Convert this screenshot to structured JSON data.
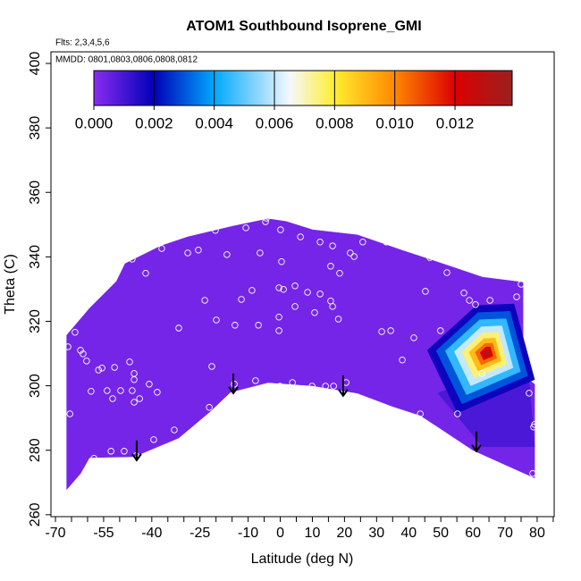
{
  "chart_data": {
    "type": "curtain",
    "title": "ATOM1 Southbound Isoprene_GMI",
    "subtitle": "Flts: 2,3,4,5,6",
    "annotation": "MMDD: 0801,0803,0806,0808,0812",
    "x_label": "Latitude (deg N)",
    "y_label": "Theta (C)",
    "xlim": [
      -71.4,
      85.3
    ],
    "ylim": [
      259.4,
      403.6
    ],
    "xticks": [
      -70,
      -55,
      -40,
      -25,
      -10,
      0,
      10,
      20,
      30,
      40,
      50,
      60,
      70,
      80
    ],
    "xminor_ticks": [
      -65,
      -60,
      -50,
      -45,
      -35,
      -30,
      -20,
      -15,
      -5,
      5,
      15,
      25,
      35,
      45,
      55,
      65,
      75,
      85
    ],
    "yticks": [
      260,
      280,
      300,
      320,
      340,
      360,
      380,
      400
    ],
    "colorbar": {
      "lim": [
        0,
        0.0139
      ],
      "ticks": [
        {
          "value": 0,
          "label": "0.000"
        },
        {
          "value": 0.002,
          "label": "0.002"
        },
        {
          "value": 0.004,
          "label": "0.004"
        },
        {
          "value": 0.006,
          "label": "0.006"
        },
        {
          "value": 0.008,
          "label": "0.008"
        },
        {
          "value": 0.01,
          "label": "0.010"
        },
        {
          "value": 0.012,
          "label": "0.012"
        }
      ],
      "colorscale": [
        [
          0,
          "#8a2cf0"
        ],
        [
          0.002,
          "#0000b8"
        ],
        [
          0.004,
          "#00a8ff"
        ],
        [
          0.0065,
          "#f4f8ff"
        ],
        [
          0.008,
          "#ffee30"
        ],
        [
          0.01,
          "#ff8800"
        ],
        [
          0.012,
          "#dd0000"
        ],
        [
          0.0139,
          "#9a2020"
        ]
      ]
    },
    "levels": [
      {
        "value": 0.0003,
        "polygon": [
          [
            -66.5,
            267.8
          ],
          [
            -66.5,
            315.7
          ],
          [
            -59.4,
            324
          ],
          [
            -51,
            332.4
          ],
          [
            -48.3,
            337.9
          ],
          [
            -37.2,
            343.4
          ],
          [
            -28.8,
            346.2
          ],
          [
            -14.9,
            349.5
          ],
          [
            -3.8,
            351.8
          ],
          [
            1.8,
            351
          ],
          [
            10.1,
            348.4
          ],
          [
            24,
            346.8
          ],
          [
            38,
            342
          ],
          [
            46.3,
            339.3
          ],
          [
            54.7,
            336.5
          ],
          [
            63,
            333.7
          ],
          [
            75.6,
            332.1
          ],
          [
            75.6,
            303.2
          ],
          [
            79.2,
            300.5
          ],
          [
            79.2,
            271.4
          ],
          [
            70,
            275.5
          ],
          [
            60,
            280
          ],
          [
            50,
            286.6
          ],
          [
            43.6,
            290.8
          ],
          [
            35.2,
            293.5
          ],
          [
            24,
            297.7
          ],
          [
            10.1,
            300
          ],
          [
            -3.8,
            301
          ],
          [
            -15.5,
            298
          ],
          [
            -21.8,
            292
          ],
          [
            -31.6,
            283.8
          ],
          [
            -45.5,
            278
          ],
          [
            -59.4,
            277.7
          ],
          [
            -62.2,
            272.8
          ]
        ]
      },
      {
        "value": 0.0009,
        "polygon": [
          [
            49.1,
            297.7
          ],
          [
            76.9,
            308.8
          ],
          [
            79.2,
            281.1
          ],
          [
            63.0,
            281.1
          ]
        ]
      },
      {
        "value": 0.0018,
        "polygon": [
          [
            45.8,
            311.0
          ],
          [
            61.1,
            324.9
          ],
          [
            72.8,
            325.4
          ],
          [
            79.2,
            301.9
          ],
          [
            55.2,
            291.6
          ]
        ]
      },
      {
        "value": 0.003,
        "polygon": [
          [
            48.6,
            310.9
          ],
          [
            61.6,
            322.7
          ],
          [
            71.5,
            323.1
          ],
          [
            77.0,
            303.1
          ],
          [
            56.6,
            294.4
          ]
        ]
      },
      {
        "value": 0.0045,
        "polygon": [
          [
            51.4,
            310.8
          ],
          [
            62.1,
            320.5
          ],
          [
            70.3,
            320.8
          ],
          [
            74.8,
            304.4
          ],
          [
            58.0,
            297.2
          ]
        ]
      },
      {
        "value": 0.006,
        "polygon": [
          [
            54.2,
            310.6
          ],
          [
            62.6,
            318.3
          ],
          [
            69.0,
            318.6
          ],
          [
            72.5,
            305.6
          ],
          [
            59.3,
            300.0
          ]
        ]
      },
      {
        "value": 0.0075,
        "polygon": [
          [
            56.6,
            310.5
          ],
          [
            63.0,
            316.4
          ],
          [
            67.9,
            316.6
          ],
          [
            70.6,
            306.7
          ],
          [
            60.5,
            302.4
          ]
        ]
      },
      {
        "value": 0.009,
        "polygon": [
          [
            58.8,
            310.4
          ],
          [
            63.4,
            314.6
          ],
          [
            66.9,
            314.8
          ],
          [
            68.8,
            307.7
          ],
          [
            61.6,
            304.6
          ]
        ]
      },
      {
        "value": 0.0105,
        "polygon": [
          [
            60.7,
            310.4
          ],
          [
            63.7,
            313.1
          ],
          [
            66.1,
            313.2
          ],
          [
            67.4,
            308.5
          ],
          [
            62.6,
            306.5
          ]
        ]
      },
      {
        "value": 0.012,
        "polygon": [
          [
            62.2,
            310.3
          ],
          [
            64.0,
            312.0
          ],
          [
            65.4,
            312.0
          ],
          [
            66.2,
            309.2
          ],
          [
            63.3,
            308.0
          ]
        ]
      },
      {
        "value": 0.0135,
        "polygon": [
          [
            63.5,
            310.2
          ],
          [
            64.2,
            310.9
          ],
          [
            64.8,
            310.9
          ],
          [
            65.1,
            309.8
          ],
          [
            63.9,
            309.3
          ]
        ]
      }
    ],
    "points": {
      "x": [
        -66.1,
        -63.9,
        -62.2,
        -61.4,
        -60.3,
        -56.6,
        -55.5,
        -51.6,
        -46.9,
        -45.5,
        -45.5,
        -58.9,
        -53.9,
        -52.2,
        -49.7,
        -46.1,
        -43.8,
        -45.5,
        -40.8,
        -38.3,
        -65.5,
        -58.0,
        -52.7,
        -48.6,
        -44.9,
        -39.4,
        -33.0,
        -46.1,
        -41.9,
        -36.9,
        -28.8,
        -25.5,
        -20.2,
        -16.6,
        -10.7,
        -4.6,
        -4.3,
        0.1,
        -6.3,
        6.3,
        12.4,
        16.3,
        21.8,
        25.7,
        33.0,
        40.2,
        46.6,
        51.9,
        23.0,
        15.7,
        18.5,
        0.4,
        4.6,
        8.5,
        12.4,
        15.7,
        -0.4,
        1.0,
        -8.8,
        -12.1,
        -23.5,
        -19.9,
        -14.1,
        -6.8,
        -0.4,
        -0.4,
        4.6,
        10.7,
        16.3,
        18.1,
        31.6,
        34.4,
        41.6,
        45.2,
        49.9,
        57.2,
        58.9,
        60.8,
        65.3,
        73.6,
        75.0,
        -31.6,
        -21.3,
        38.0,
        -0.1,
        -0.1,
        3.8,
        9.9,
        14.1,
        16.6,
        20.5,
        -7.7,
        -14.3,
        -22.1,
        35.5,
        43.6,
        55.2,
        62.8,
        77.5,
        78.9,
        79.2,
        78.6
      ],
      "y": [
        312.1,
        316.6,
        311.0,
        309.9,
        307.7,
        304.9,
        305.5,
        305.7,
        307.4,
        303.8,
        301.9,
        298.3,
        298.5,
        296.0,
        298.5,
        298.5,
        296.0,
        294.9,
        300.5,
        298.0,
        291.3,
        277.5,
        279.7,
        279.7,
        278.3,
        283.3,
        286.3,
        339.3,
        334.9,
        342.6,
        341.2,
        342.1,
        348.2,
        340.7,
        349.0,
        350.9,
        352.0,
        348.4,
        341.2,
        346.2,
        344.6,
        343.4,
        341.2,
        344.6,
        344.6,
        343.2,
        339.8,
        335.1,
        340.1,
        337.1,
        334.9,
        338.5,
        331.0,
        329.0,
        328.5,
        326.3,
        330.4,
        329.9,
        329.6,
        326.8,
        326.5,
        320.4,
        318.8,
        318.8,
        321.3,
        317.1,
        324.6,
        322.7,
        324.6,
        320.7,
        316.8,
        317.1,
        314.9,
        329.3,
        317.1,
        328.8,
        326.5,
        325.2,
        326.5,
        327.6,
        331.5,
        317.9,
        306.0,
        308.0,
        299.9,
        299.1,
        301.0,
        299.9,
        299.9,
        299.9,
        301.0,
        301.6,
        300.5,
        293.3,
        292.2,
        291.3,
        291.3,
        303.8,
        297.7,
        287.2,
        288.0,
        272.8
      ]
    },
    "arrows": {
      "x": [
        -44.7,
        -14.6,
        19.6,
        61.1
      ],
      "y_start": [
        283.0,
        303.8,
        303.2,
        285.8
      ],
      "y_end": [
        276.9,
        297.7,
        296.9,
        279.7
      ]
    }
  }
}
